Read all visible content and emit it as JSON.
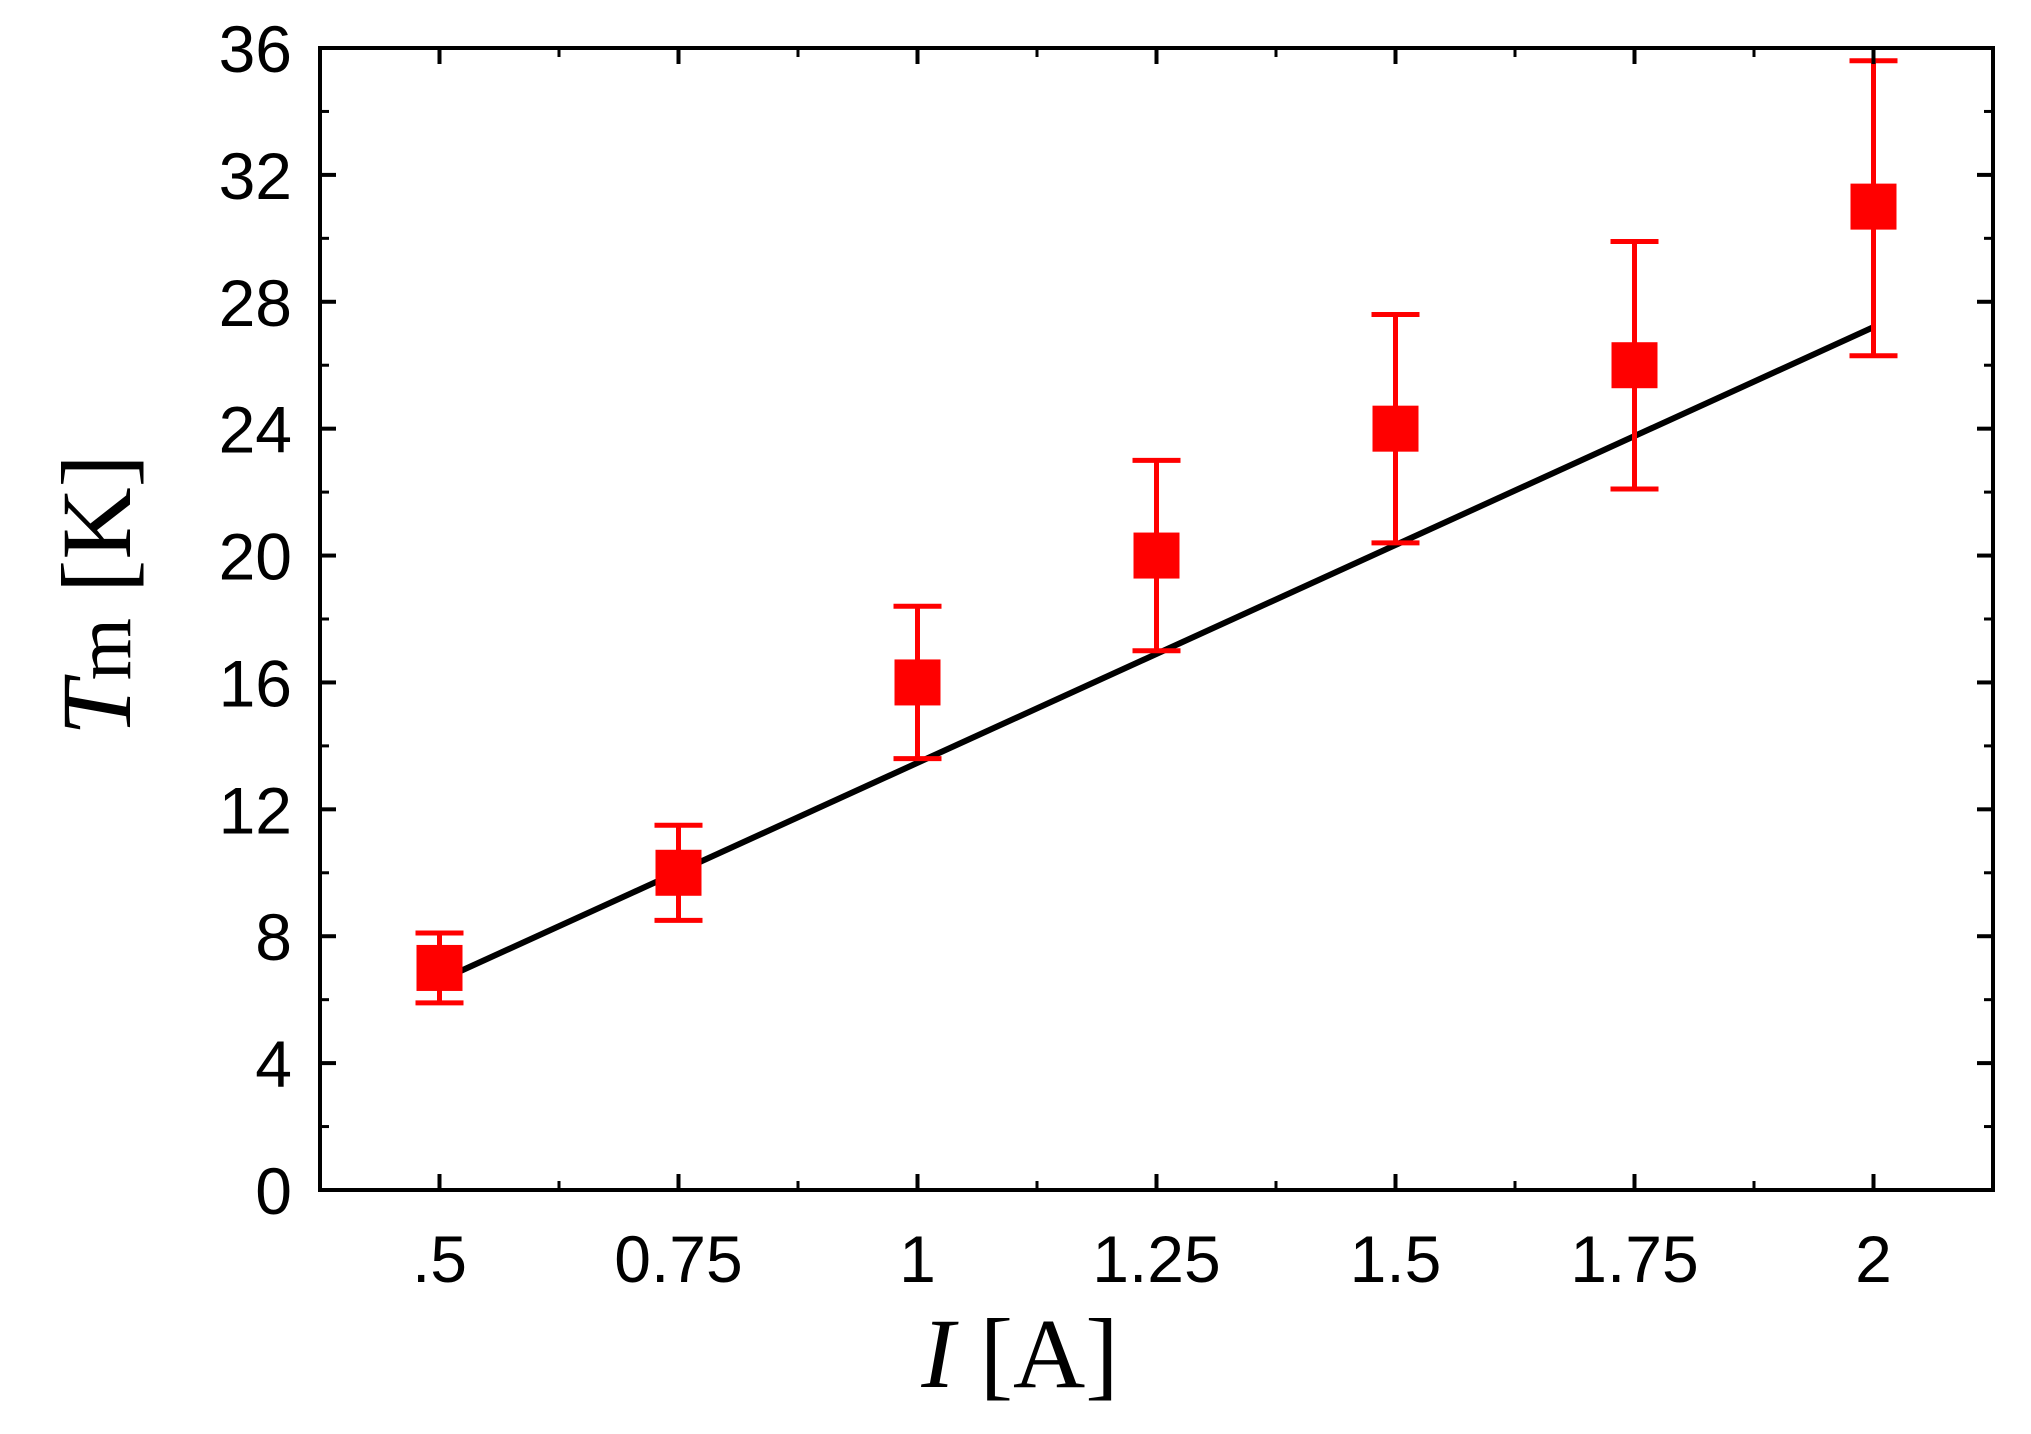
{
  "chart_data": {
    "type": "scatter",
    "xlabel": {
      "var": "I",
      "unit": "[A]"
    },
    "ylabel": {
      "var": "T",
      "sub": "m",
      "unit": "[K]"
    },
    "xlim": [
      0.375,
      2.125
    ],
    "ylim": [
      0,
      36
    ],
    "x_ticks": [
      0.5,
      0.75,
      1,
      1.25,
      1.5,
      1.75,
      2
    ],
    "x_tick_labels": [
      ".5",
      "0.75",
      "1",
      "1.25",
      "1.5",
      "1.75",
      "2"
    ],
    "y_ticks": [
      0,
      4,
      8,
      12,
      16,
      20,
      24,
      28,
      32,
      36
    ],
    "y_tick_labels": [
      "0",
      "4",
      "8",
      "12",
      "16",
      "20",
      "24",
      "28",
      "32",
      "36"
    ],
    "grid": false,
    "series": [
      {
        "kind": "points",
        "color": "#ff0000",
        "marker": "square",
        "x": [
          0.5,
          0.75,
          1,
          1.25,
          1.5,
          1.75,
          2
        ],
        "y": [
          7.0,
          10.0,
          16.0,
          20.0,
          24.0,
          26.0,
          31.0
        ],
        "err_low": [
          1.1,
          1.5,
          2.4,
          3.0,
          3.6,
          3.9,
          4.7
        ],
        "err_high": [
          1.1,
          1.5,
          2.4,
          3.0,
          3.6,
          3.9,
          4.6
        ]
      },
      {
        "kind": "line",
        "color": "#000000",
        "x": [
          0.5,
          2.0
        ],
        "y": [
          6.6,
          27.2
        ]
      }
    ]
  }
}
